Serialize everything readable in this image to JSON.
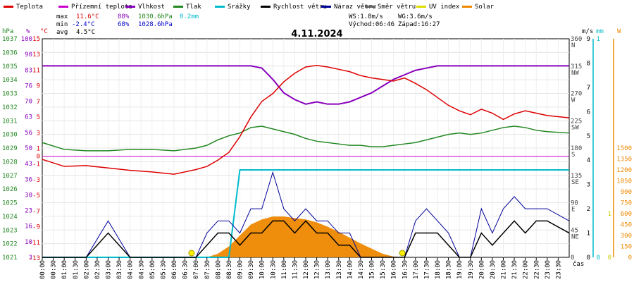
{
  "chart_data": {
    "type": "line",
    "title": "4.11.2024",
    "xlabel": "čas",
    "legend": [
      {
        "name": "Teplota",
        "color": "#dd0000"
      },
      {
        "name": "Přízemní teplota",
        "color": "#cc00cc"
      },
      {
        "name": "Vlhkost",
        "color": "#8800bb"
      },
      {
        "name": "Tlak",
        "color": "#228822"
      },
      {
        "name": "Srážky",
        "color": "#00bbcc"
      },
      {
        "name": "Rychlost větru",
        "color": "#000000"
      },
      {
        "name": "Náraz větru",
        "color": "#000099"
      },
      {
        "name": "Směr větru",
        "color": "#666666"
      },
      {
        "name": "UV index",
        "color": "#dddd00"
      },
      {
        "name": "Solar",
        "color": "#ee8800"
      }
    ],
    "stats": {
      "max": {
        "label": "max",
        "temp": "11.6°C",
        "hum": "88%",
        "press": "1030.6hPa",
        "rain": "0.2mm"
      },
      "min": {
        "label": "min",
        "temp": "-2.4°C",
        "hum": "68%",
        "press": "1028.6hPa"
      },
      "avg": {
        "label": "avg",
        "temp": "4.5°C"
      }
    },
    "info": {
      "ws": "WS:1.8m/s",
      "wg": "WG:3.6m/s",
      "sunrise": "Východ:06:46",
      "sunset": "Západ:16:27"
    },
    "axes": {
      "hpa": {
        "unit": "hPa",
        "ticks": [
          "1037",
          "1036",
          "1035",
          "1034",
          "1033",
          "1032",
          "1031",
          "1030",
          "1029",
          "1028",
          "1027",
          "1026",
          "1025",
          "1024",
          "1023",
          "1022",
          "1021"
        ]
      },
      "pct": {
        "unit": "%",
        "ticks": [
          "100",
          "90",
          "83",
          "76",
          "70",
          "63",
          "56",
          "50",
          "43",
          "36",
          "30",
          "23",
          "16",
          "10",
          "3"
        ]
      },
      "temp": {
        "unit": "°C",
        "ticks": [
          "15",
          "13",
          "11",
          "9",
          "7",
          "5",
          "3",
          "1",
          "0",
          "-1",
          "-3",
          "-5",
          "-7",
          "-9",
          "-11",
          "-13"
        ]
      },
      "dir": {
        "unit": "°",
        "ticks": [
          {
            "deg": "360",
            "card": "N"
          },
          {
            "deg": "315",
            "card": "NW"
          },
          {
            "deg": "270",
            "card": "W"
          },
          {
            "deg": "225",
            "card": "SW"
          },
          {
            "deg": "180",
            "card": "S"
          },
          {
            "deg": "135",
            "card": "SE"
          },
          {
            "deg": "90",
            "card": "E"
          },
          {
            "deg": "45",
            "card": "NE"
          },
          {
            "deg": "0",
            "card": ""
          }
        ]
      },
      "ms": {
        "unit": "m/s",
        "ticks": [
          "9",
          "8",
          "7",
          "6",
          "5",
          "4",
          "3",
          "2",
          "1",
          "0"
        ]
      },
      "mm": {
        "unit": "mm",
        "ticks": [
          "1",
          "0"
        ]
      },
      "uv": {
        "unit": "UV",
        "ticks": [
          "1",
          "0"
        ]
      },
      "w": {
        "unit": "W",
        "ticks": [
          "1500",
          "1350",
          "1200",
          "1050",
          "900",
          "750",
          "600",
          "450",
          "300",
          "150",
          "0"
        ]
      }
    },
    "x_ticks": [
      "00:00",
      "00:30",
      "01:00",
      "01:30",
      "02:00",
      "02:30",
      "03:00",
      "03:30",
      "04:00",
      "04:30",
      "05:00",
      "05:30",
      "06:00",
      "06:30",
      "07:00",
      "07:30",
      "08:00",
      "08:30",
      "09:00",
      "09:30",
      "10:00",
      "10:30",
      "11:00",
      "11:30",
      "12:00",
      "12:30",
      "13:00",
      "13:30",
      "14:00",
      "14:30",
      "15:00",
      "15:30",
      "16:00",
      "16:30",
      "17:00",
      "17:30",
      "18:00",
      "18:30",
      "19:00",
      "19:30",
      "20:00",
      "20:30",
      "21:00",
      "21:30",
      "22:00",
      "22:30",
      "23:00",
      "23:30"
    ],
    "hours": [
      0,
      1,
      2,
      3,
      4,
      5,
      6,
      7,
      7.5,
      8,
      8.5,
      9,
      9.5,
      10,
      10.5,
      11,
      11.5,
      12,
      12.5,
      13,
      13.5,
      14,
      14.5,
      15,
      15.5,
      16,
      16.5,
      17,
      17.5,
      18,
      18.5,
      19,
      19.5,
      20,
      20.5,
      21,
      21.5,
      22,
      22.5,
      23,
      24
    ],
    "series": [
      {
        "name": "Teplota",
        "unit": "°C",
        "values": [
          -0.4,
          -1.3,
          -1.2,
          -1.5,
          -1.8,
          -2.0,
          -2.3,
          -1.7,
          -1.3,
          -0.5,
          0.5,
          2.5,
          5.0,
          7.0,
          8.0,
          9.5,
          10.6,
          11.4,
          11.6,
          11.4,
          11.1,
          10.8,
          10.3,
          10.0,
          9.8,
          9.6,
          10.0,
          9.3,
          8.5,
          7.5,
          6.5,
          5.8,
          5.3,
          6.0,
          5.5,
          4.7,
          5.4,
          5.8,
          5.5,
          5.2,
          4.9
        ]
      },
      {
        "name": "Přízemní teplota",
        "unit": "°C",
        "values": [
          0,
          0,
          0,
          0,
          0,
          0,
          0,
          0,
          0,
          0,
          0,
          0,
          0,
          0,
          0,
          0,
          0,
          0,
          0,
          0,
          0,
          0,
          0,
          0,
          0,
          0,
          0,
          0,
          0,
          0,
          0,
          0,
          0,
          0,
          0,
          0,
          0,
          0,
          0,
          0,
          0
        ]
      },
      {
        "name": "Vlhkost",
        "unit": "%",
        "values": [
          88,
          88,
          88,
          88,
          88,
          88,
          88,
          88,
          88,
          88,
          88,
          88,
          88,
          87,
          82,
          76,
          73,
          71,
          72,
          71,
          71,
          72,
          74,
          76,
          79,
          82,
          84,
          86,
          87,
          88,
          88,
          88,
          88,
          88,
          88,
          88,
          88,
          88,
          88,
          88,
          88
        ]
      },
      {
        "name": "Tlak",
        "unit": "hPa",
        "values": [
          1029.4,
          1028.9,
          1028.8,
          1028.8,
          1028.9,
          1028.9,
          1028.8,
          1029.0,
          1029.2,
          1029.6,
          1029.9,
          1030.1,
          1030.5,
          1030.6,
          1030.4,
          1030.2,
          1030.0,
          1029.7,
          1029.5,
          1029.4,
          1029.3,
          1029.2,
          1029.2,
          1029.1,
          1029.1,
          1029.2,
          1029.3,
          1029.4,
          1029.6,
          1029.8,
          1030.0,
          1030.1,
          1030.0,
          1030.1,
          1030.3,
          1030.5,
          1030.6,
          1030.5,
          1030.3,
          1030.2,
          1030.1
        ]
      },
      {
        "name": "Srážky",
        "unit": "mm",
        "values": [
          0,
          0,
          0,
          0,
          0,
          0,
          0,
          0,
          0,
          0,
          0,
          0.2,
          0.2,
          0.2,
          0.2,
          0.2,
          0.2,
          0.2,
          0.2,
          0.2,
          0.2,
          0.2,
          0.2,
          0.2,
          0.2,
          0.2,
          0.2,
          0.2,
          0.2,
          0.2,
          0.2,
          0.2,
          0.2,
          0.2,
          0.2,
          0.2,
          0.2,
          0.2,
          0.2,
          0.2,
          0.2
        ]
      },
      {
        "name": "Rychlost větru",
        "unit": "m/s",
        "values": [
          0,
          0,
          0,
          1,
          0,
          0,
          0,
          0,
          0.5,
          1,
          1,
          0.5,
          1,
          1,
          1.5,
          1.5,
          1,
          1.5,
          1,
          1,
          0.5,
          0.5,
          0,
          0,
          0,
          0,
          0,
          1,
          1,
          1,
          0.5,
          0,
          0,
          1,
          0.5,
          1,
          1.5,
          1,
          1.5,
          1.5,
          1
        ]
      },
      {
        "name": "Náraz větru",
        "unit": "m/s",
        "values": [
          0,
          0,
          0,
          1.5,
          0,
          0,
          0,
          0,
          1,
          1.5,
          1.5,
          1,
          2,
          2,
          3.5,
          2,
          1.5,
          2,
          1.5,
          1.5,
          1,
          1,
          0,
          0,
          0,
          0,
          0,
          1.5,
          2,
          1.5,
          1,
          0,
          0,
          2,
          1,
          2,
          2.5,
          2,
          2,
          2,
          1.5
        ]
      },
      {
        "name": "Solar",
        "unit": "W",
        "values": [
          0,
          0,
          0,
          0,
          0,
          0,
          0,
          0,
          0,
          50,
          150,
          300,
          450,
          520,
          560,
          560,
          540,
          520,
          480,
          420,
          350,
          270,
          190,
          120,
          50,
          10,
          0,
          0,
          0,
          0,
          0,
          0,
          0,
          0,
          0,
          0,
          0,
          0,
          0,
          0,
          0
        ]
      }
    ]
  }
}
